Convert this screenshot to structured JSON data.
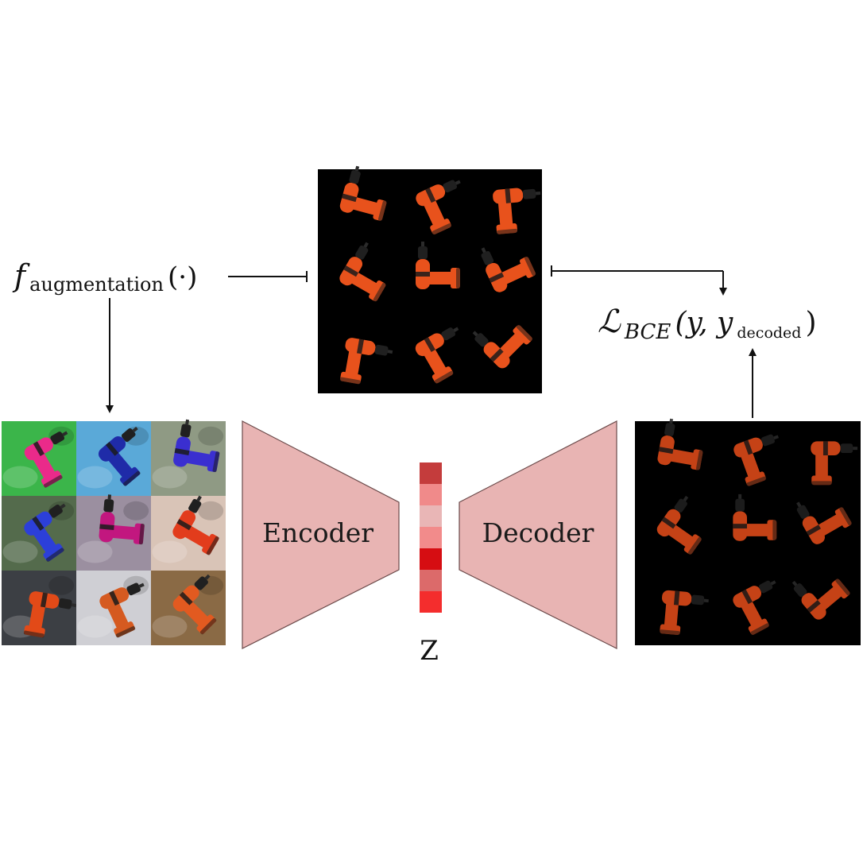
{
  "augmentation": {
    "symbol": "f",
    "subscript": "augmentation",
    "argument": "(·)"
  },
  "loss": {
    "symbol": "ℒ",
    "subscript": "BCE",
    "args_open": "(y, y",
    "args_sub": "decoded",
    "args_close": ")"
  },
  "encoder": {
    "label": "Encoder",
    "color": "#e8b4b3"
  },
  "decoder": {
    "label": "Decoder",
    "color": "#e8b4b3"
  },
  "latent": {
    "label": "Z",
    "cells": [
      "#c43c3c",
      "#f08a8a",
      "#e9b6b6",
      "#f28b8b",
      "#d60d12",
      "#dc6a6a",
      "#f42d2d"
    ]
  },
  "images": {
    "target_grid": {
      "background": "#000000",
      "object_color": "#e8521c"
    },
    "augmented_grid": {
      "tile_backgrounds": [
        "#3bb54a",
        "#5aa9d8",
        "#8f9a84",
        "#546b4c",
        "#9b8fa0",
        "#d9c4b7",
        "#3c3f44",
        "#cfcfd4",
        "#8a6a45"
      ],
      "tile_objects": [
        "#ea2a8a",
        "#1f2ba8",
        "#3a2fd0",
        "#2c3fd9",
        "#c2177f",
        "#e23c1c",
        "#e24a18",
        "#d55a20",
        "#e25a20"
      ]
    },
    "decoded_grid": {
      "background": "#000000",
      "object_color": "#e14c1a"
    }
  }
}
